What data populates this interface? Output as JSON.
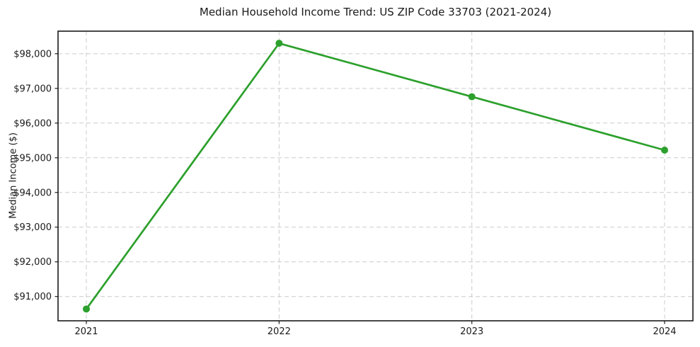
{
  "chart_data": {
    "type": "line",
    "title": "Median Household Income Trend: US ZIP Code 33703 (2021-2024)",
    "xlabel": "",
    "ylabel": "Median Income ($)",
    "categories": [
      "2021",
      "2022",
      "2023",
      "2024"
    ],
    "series": [
      {
        "name": "Median Household Income",
        "values": [
          90640,
          98300,
          96760,
          95220
        ]
      }
    ],
    "ylim": [
      90300,
      98650
    ],
    "y_ticks": [
      91000,
      92000,
      93000,
      94000,
      95000,
      96000,
      97000,
      98000
    ],
    "y_tick_labels": [
      "$91,000",
      "$92,000",
      "$93,000",
      "$94,000",
      "$95,000",
      "$96,000",
      "$97,000",
      "$98,000"
    ],
    "grid": true,
    "grid_style": "dashed",
    "grid_color": "#cccccc",
    "line_color": "#2ca02c",
    "marker": "circle",
    "marker_radius": 5,
    "legend": "none",
    "frame_color": "#1a1a1a"
  }
}
